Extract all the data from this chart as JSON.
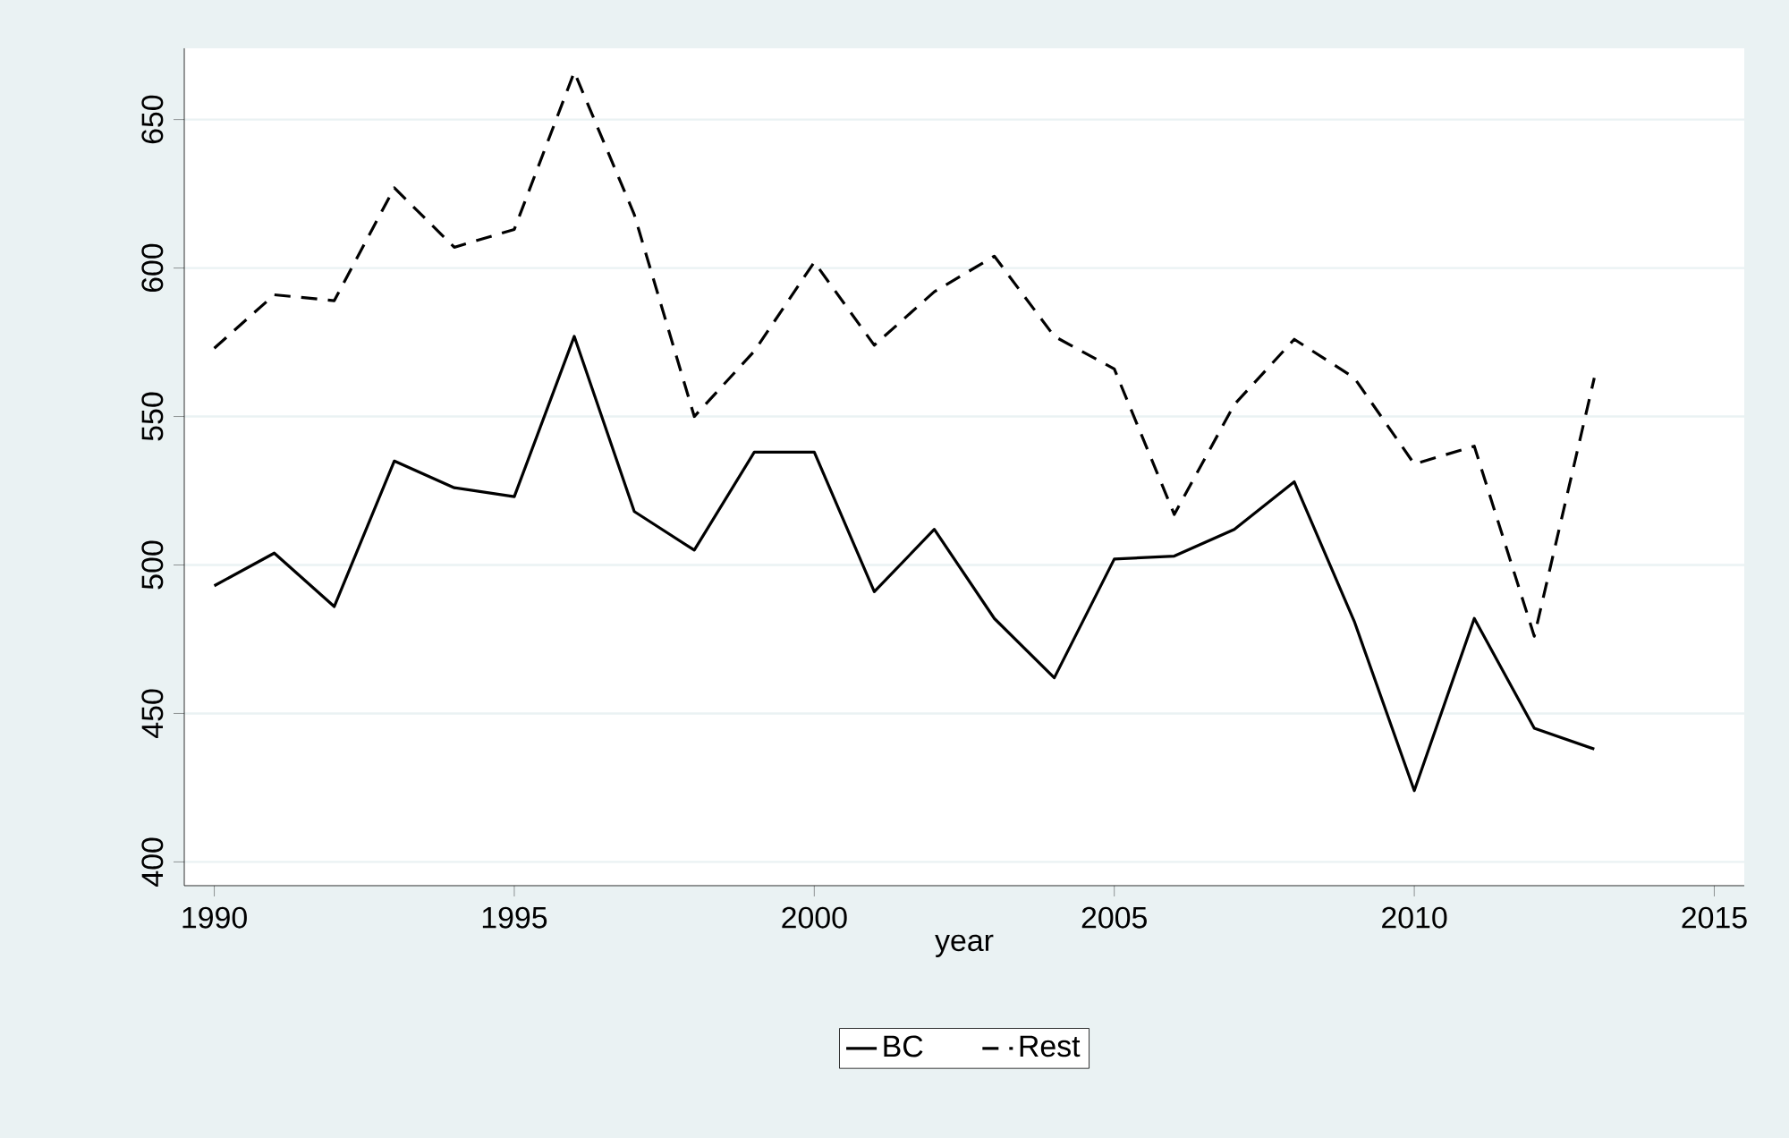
{
  "chart_data": {
    "type": "line",
    "xlabel": "year",
    "x": [
      1990,
      1991,
      1992,
      1993,
      1994,
      1995,
      1996,
      1997,
      1998,
      1999,
      2000,
      2001,
      2002,
      2003,
      2004,
      2005,
      2006,
      2007,
      2008,
      2009,
      2010,
      2011,
      2012,
      2013
    ],
    "series": [
      {
        "name": "BC",
        "color": "#000000",
        "line_style": "solid",
        "values": [
          493,
          504,
          486,
          535,
          526,
          523,
          577,
          518,
          505,
          538,
          538,
          491,
          512,
          482,
          462,
          502,
          503,
          512,
          528,
          481,
          424,
          482,
          445,
          438
        ]
      },
      {
        "name": "Rest",
        "color": "#000000",
        "line_style": "dashed",
        "values": [
          573,
          591,
          589,
          627,
          607,
          613,
          666,
          618,
          550,
          572,
          602,
          574,
          592,
          604,
          577,
          566,
          517,
          554,
          576,
          563,
          534,
          540,
          476,
          563
        ]
      }
    ],
    "xlim": [
      1989.5,
      2015.5
    ],
    "xticks": [
      1990,
      1995,
      2000,
      2005,
      2010,
      2015
    ],
    "ylim": [
      392,
      674
    ],
    "yticks": [
      400,
      450,
      500,
      550,
      600,
      650
    ],
    "grid": "y",
    "legend": "bottom",
    "marker": "none"
  }
}
